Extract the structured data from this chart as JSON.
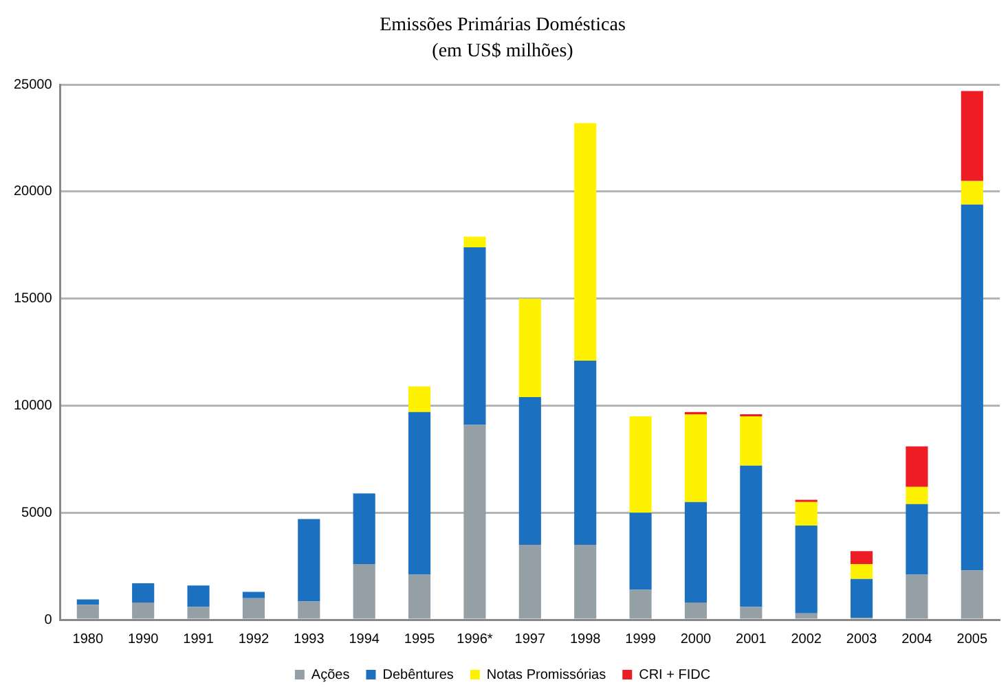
{
  "chart_data": {
    "type": "bar",
    "title": "Emissões Primárias Domésticas",
    "subtitle": "(em US$ milhões)",
    "categories": [
      "1980",
      "1990",
      "1991",
      "1992",
      "1993",
      "1994",
      "1995",
      "1996*",
      "1997",
      "1998",
      "1999",
      "2000",
      "2001",
      "2002",
      "2003",
      "2004",
      "2005"
    ],
    "stacked": true,
    "series": [
      {
        "name": "Ações",
        "color": "#949fa6",
        "values": [
          700,
          800,
          600,
          1000,
          850,
          2600,
          2100,
          9100,
          3500,
          3500,
          1400,
          800,
          600,
          300,
          100,
          2100,
          2300
        ]
      },
      {
        "name": "Debêntures",
        "color": "#1b70c0",
        "values": [
          250,
          900,
          1000,
          300,
          3850,
          3300,
          7600,
          8300,
          6900,
          8600,
          3600,
          4700,
          6600,
          4100,
          1800,
          3300,
          17100
        ]
      },
      {
        "name": "Notas Promissórias",
        "color": "#fff200",
        "values": [
          null,
          null,
          null,
          null,
          null,
          null,
          1200,
          500,
          4600,
          11100,
          4500,
          4100,
          2300,
          1100,
          700,
          800,
          1100
        ]
      },
      {
        "name": "CRI + FIDC",
        "color": "#ee1c24",
        "values": [
          null,
          null,
          null,
          null,
          null,
          null,
          null,
          null,
          null,
          null,
          null,
          100,
          100,
          100,
          600,
          1900,
          4200
        ]
      }
    ],
    "ylim": [
      0,
      25000
    ],
    "yticks": [
      0,
      5000,
      10000,
      15000,
      20000,
      25000
    ],
    "grid": "y",
    "legend": "bottom"
  }
}
